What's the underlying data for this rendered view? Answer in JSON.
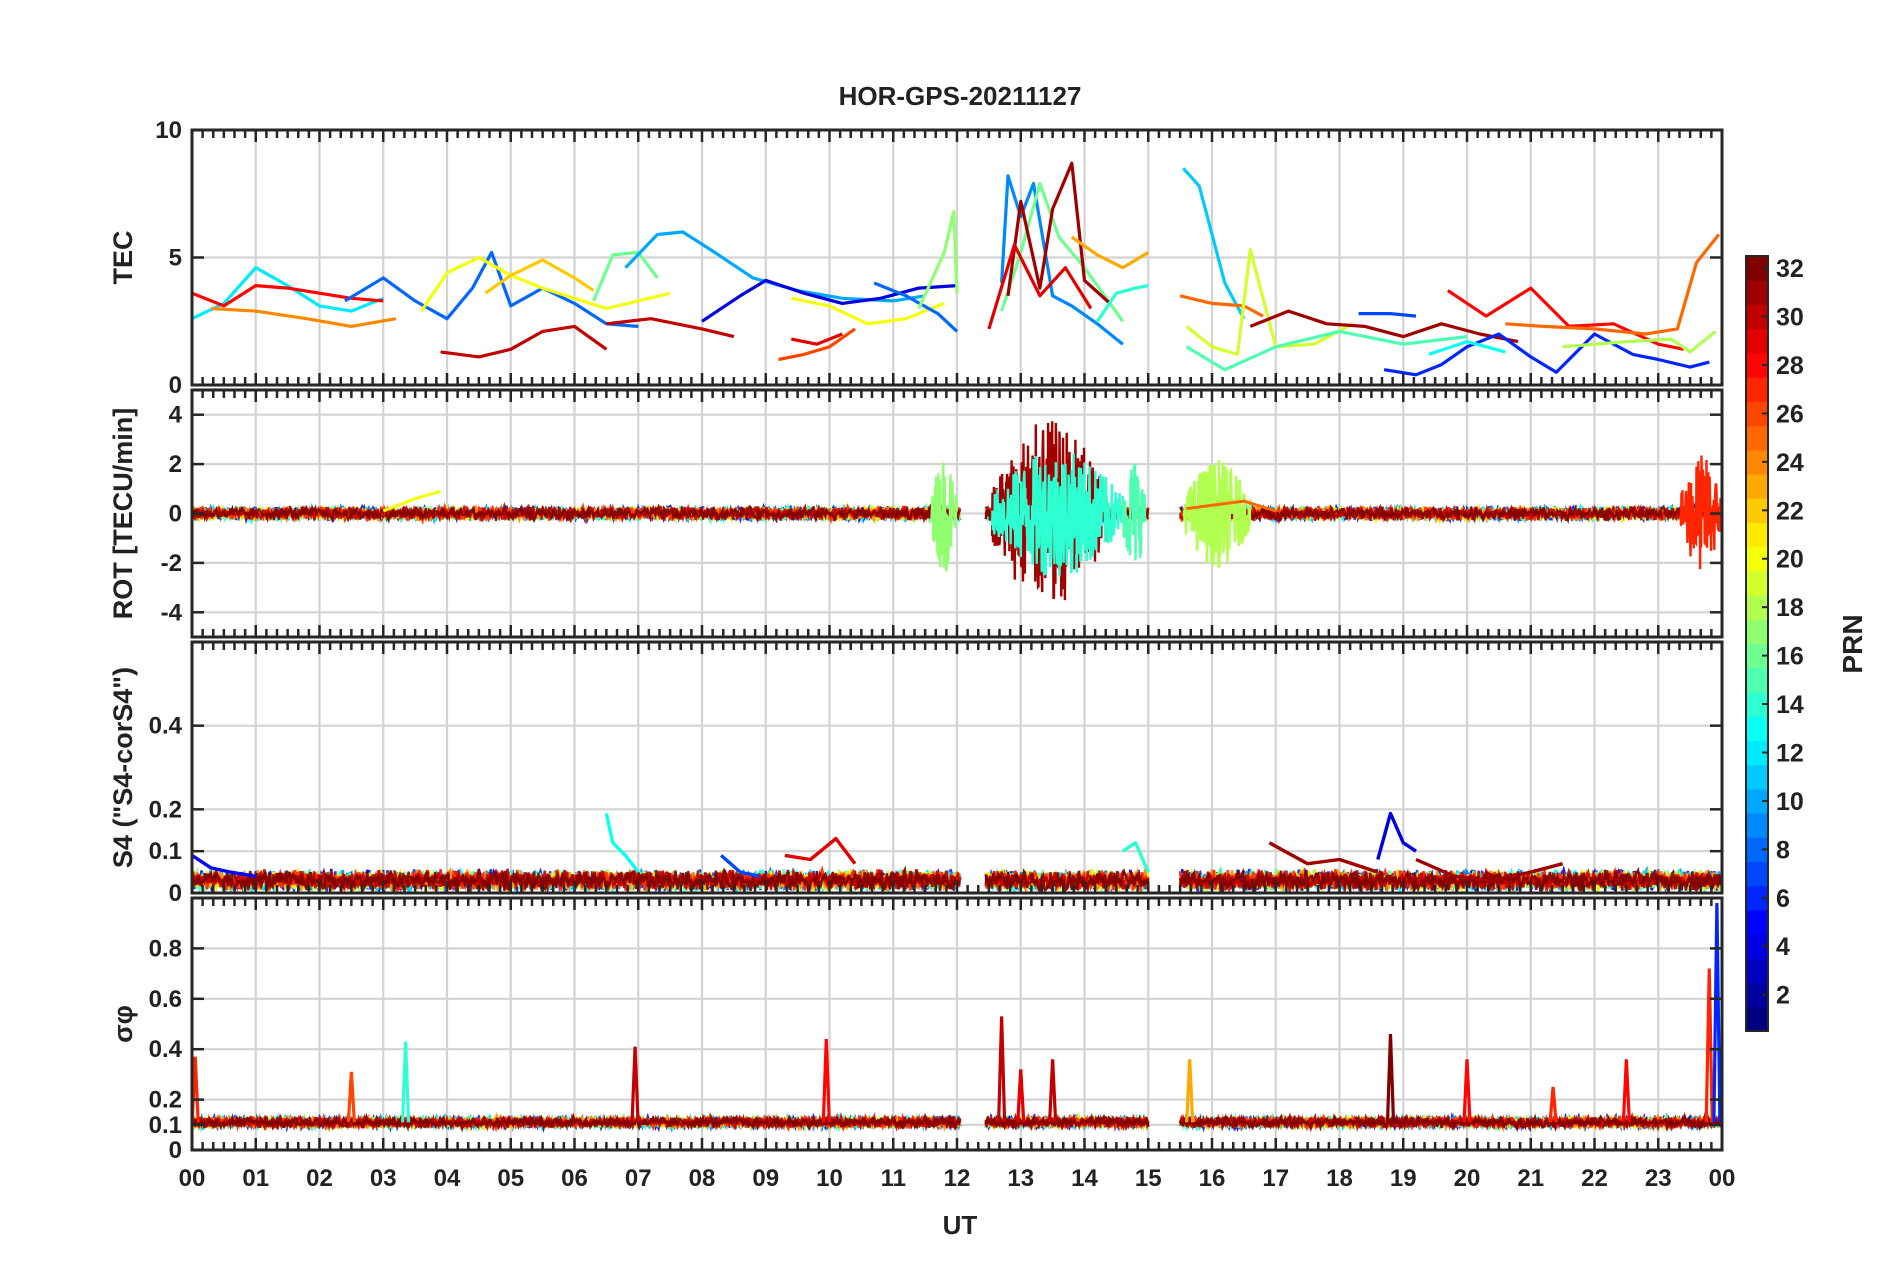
{
  "chart_data": {
    "type": "line",
    "title": "HOR-GPS-20211127",
    "xlabel": "UT",
    "x_ticks": [
      "00",
      "01",
      "02",
      "03",
      "04",
      "05",
      "06",
      "07",
      "08",
      "09",
      "10",
      "11",
      "12",
      "13",
      "14",
      "15",
      "16",
      "17",
      "18",
      "19",
      "20",
      "21",
      "22",
      "23",
      "00"
    ],
    "xlim": [
      0,
      24
    ],
    "grid": true,
    "data_gaps_ut": [
      [
        12.05,
        12.45
      ],
      [
        15.0,
        15.5
      ]
    ],
    "panels": [
      {
        "id": "tec",
        "ylabel": "TEC",
        "ylim": [
          0,
          10
        ],
        "y_tick_labels": [
          "0",
          "5",
          "10"
        ],
        "y_tick_values": [
          0,
          5,
          10
        ],
        "series": [
          {
            "prn": 12,
            "x": [
              0.0,
              0.5,
              1.0,
              1.5,
              2.0,
              2.5,
              3.0
            ],
            "y": [
              2.6,
              3.2,
              4.6,
              3.9,
              3.1,
              2.9,
              3.4
            ]
          },
          {
            "prn": 28,
            "x": [
              0.0,
              0.5,
              1.0,
              1.5,
              2.0,
              2.5,
              3.0
            ],
            "y": [
              3.6,
              3.1,
              3.9,
              3.8,
              3.6,
              3.4,
              3.3
            ]
          },
          {
            "prn": 24,
            "x": [
              0.3,
              1.0,
              1.8,
              2.5,
              3.2
            ],
            "y": [
              3.0,
              2.9,
              2.6,
              2.3,
              2.6
            ]
          },
          {
            "prn": 8,
            "x": [
              2.4,
              3.0,
              3.5,
              4.0,
              4.4,
              4.7,
              5.0,
              5.5,
              6.0,
              6.5,
              7.0
            ],
            "y": [
              3.3,
              4.2,
              3.3,
              2.6,
              3.8,
              5.2,
              3.1,
              3.8,
              3.2,
              2.4,
              2.3
            ]
          },
          {
            "prn": 20,
            "x": [
              3.6,
              4.0,
              4.5,
              5.0,
              5.5,
              6.0,
              6.5,
              7.0,
              7.5
            ],
            "y": [
              2.9,
              4.4,
              5.0,
              4.3,
              3.8,
              3.4,
              3.0,
              3.3,
              3.6
            ]
          },
          {
            "prn": 22,
            "x": [
              4.6,
              5.0,
              5.5,
              6.0,
              6.3
            ],
            "y": [
              3.6,
              4.3,
              4.9,
              4.2,
              3.7
            ]
          },
          {
            "prn": 30,
            "x": [
              3.9,
              4.5,
              5.0,
              5.5,
              6.0,
              6.5
            ],
            "y": [
              1.3,
              1.1,
              1.4,
              2.1,
              2.3,
              1.4
            ]
          },
          {
            "prn": 16,
            "x": [
              6.3,
              6.6,
              7.0,
              7.3
            ],
            "y": [
              3.3,
              5.1,
              5.2,
              4.2
            ]
          },
          {
            "prn": 10,
            "x": [
              6.8,
              7.3,
              7.7,
              8.2,
              8.8,
              9.5,
              10.2,
              11.0,
              11.5
            ],
            "y": [
              4.6,
              5.9,
              6.0,
              5.2,
              4.2,
              3.7,
              3.4,
              3.3,
              3.5
            ]
          },
          {
            "prn": 30,
            "x": [
              6.5,
              7.2,
              8.0,
              8.5
            ],
            "y": [
              2.4,
              2.6,
              2.2,
              1.9
            ]
          },
          {
            "prn": 4,
            "x": [
              8.0,
              8.6,
              9.0,
              9.6,
              10.2,
              10.8,
              11.4,
              12.0
            ],
            "y": [
              2.5,
              3.5,
              4.1,
              3.6,
              3.2,
              3.4,
              3.8,
              3.9
            ]
          },
          {
            "prn": 20,
            "x": [
              9.4,
              10.0,
              10.6,
              11.2,
              11.8
            ],
            "y": [
              3.4,
              3.1,
              2.4,
              2.6,
              3.2
            ]
          },
          {
            "prn": 26,
            "x": [
              9.2,
              9.6,
              10.0,
              10.4
            ],
            "y": [
              1.0,
              1.2,
              1.5,
              2.2
            ]
          },
          {
            "prn": 29,
            "x": [
              9.4,
              9.8,
              10.2
            ],
            "y": [
              1.8,
              1.6,
              2.0
            ]
          },
          {
            "prn": 8,
            "x": [
              10.7,
              11.2,
              11.7,
              12.0
            ],
            "y": [
              4.0,
              3.5,
              2.8,
              2.1
            ]
          },
          {
            "prn": 17,
            "x": [
              11.4,
              11.8,
              11.95,
              12.0
            ],
            "y": [
              3.0,
              5.2,
              6.8,
              3.6
            ]
          },
          {
            "prn": 9,
            "x": [
              12.7,
              12.8,
              13.0,
              13.2,
              13.5,
              13.8,
              14.2,
              14.6
            ],
            "y": [
              4.0,
              8.2,
              6.6,
              7.9,
              3.5,
              3.1,
              2.4,
              1.6
            ]
          },
          {
            "prn": 16,
            "x": [
              12.7,
              13.0,
              13.3,
              13.6,
              14.0,
              14.6
            ],
            "y": [
              2.9,
              5.2,
              7.9,
              5.8,
              4.6,
              2.5
            ]
          },
          {
            "prn": 31,
            "x": [
              12.8,
              13.0,
              13.3,
              13.5,
              13.8,
              14.0,
              14.4
            ],
            "y": [
              3.5,
              7.2,
              3.8,
              6.9,
              8.7,
              4.1,
              3.2
            ]
          },
          {
            "prn": 29,
            "x": [
              12.5,
              12.9,
              13.3,
              13.7,
              14.1
            ],
            "y": [
              2.2,
              5.5,
              3.5,
              4.6,
              3.0
            ]
          },
          {
            "prn": 23,
            "x": [
              13.8,
              14.2,
              14.6,
              15.0
            ],
            "y": [
              5.8,
              5.1,
              4.6,
              5.2
            ]
          },
          {
            "prn": 14,
            "x": [
              14.2,
              14.5,
              14.8,
              15.0
            ],
            "y": [
              2.5,
              3.6,
              3.8,
              3.9
            ]
          },
          {
            "prn": 11,
            "x": [
              15.55,
              15.8,
              16.2,
              16.5
            ],
            "y": [
              8.5,
              7.8,
              4.0,
              2.6
            ]
          },
          {
            "prn": 25,
            "x": [
              15.5,
              16.0,
              16.5,
              16.8
            ],
            "y": [
              3.5,
              3.2,
              3.1,
              2.7
            ]
          },
          {
            "prn": 19,
            "x": [
              15.6,
              16.0,
              16.4,
              16.6,
              17.0,
              17.6,
              18.2
            ],
            "y": [
              2.3,
              1.5,
              1.2,
              5.3,
              1.5,
              1.6,
              2.4
            ]
          },
          {
            "prn": 15,
            "x": [
              15.6,
              16.2,
              17.0,
              18.0,
              19.0,
              20.0
            ],
            "y": [
              1.5,
              0.6,
              1.5,
              2.1,
              1.6,
              1.9
            ]
          },
          {
            "prn": 31,
            "x": [
              16.6,
              17.2,
              17.8,
              18.4,
              19.0,
              19.6,
              20.2,
              20.8
            ],
            "y": [
              2.3,
              2.9,
              2.4,
              2.3,
              1.9,
              2.4,
              2.0,
              1.7
            ]
          },
          {
            "prn": 7,
            "x": [
              18.3,
              18.8,
              19.2
            ],
            "y": [
              2.8,
              2.8,
              2.7
            ]
          },
          {
            "prn": 6,
            "x": [
              18.7,
              19.2,
              19.6,
              20.0,
              20.5,
              21.0,
              21.4,
              22.0,
              22.6,
              23.0,
              23.5,
              23.8
            ],
            "y": [
              0.6,
              0.4,
              0.8,
              1.5,
              2.0,
              1.1,
              0.5,
              2.0,
              1.2,
              1.0,
              0.7,
              0.9
            ]
          },
          {
            "prn": 28,
            "x": [
              19.7,
              20.3,
              21.0,
              21.6,
              22.3,
              23.0,
              23.4
            ],
            "y": [
              3.7,
              2.7,
              3.8,
              2.3,
              2.4,
              1.6,
              1.4
            ]
          },
          {
            "prn": 25,
            "x": [
              20.6,
              21.2,
              22.0,
              22.8,
              23.3,
              23.6,
              23.95
            ],
            "y": [
              2.4,
              2.3,
              2.2,
              2.0,
              2.2,
              4.8,
              5.9
            ]
          },
          {
            "prn": 18,
            "x": [
              21.5,
              22.5,
              23.2,
              23.5,
              23.9
            ],
            "y": [
              1.5,
              1.7,
              1.8,
              1.3,
              2.1
            ]
          },
          {
            "prn": 13,
            "x": [
              19.4,
              20.0,
              20.6
            ],
            "y": [
              1.2,
              1.7,
              1.3
            ]
          }
        ]
      },
      {
        "id": "rot",
        "ylabel": "ROT [TECU/min]",
        "ylim": [
          -5,
          5
        ],
        "y_tick_labels": [
          "-4",
          "-2",
          "0",
          "2",
          "4"
        ],
        "y_tick_values": [
          -4,
          -2,
          0,
          2,
          4
        ],
        "quiet_level": 0,
        "quiet_band": 0.4,
        "bursts": [
          {
            "start": 12.55,
            "end": 14.35,
            "amplitude": 3.8,
            "prn": 31
          },
          {
            "start": 12.55,
            "end": 14.6,
            "amplitude": 2.6,
            "prn": 14
          },
          {
            "start": 11.6,
            "end": 12.0,
            "amplitude": 2.4,
            "prn": 17
          },
          {
            "start": 14.6,
            "end": 14.95,
            "amplitude": 2.4,
            "prn": 15
          },
          {
            "start": 15.55,
            "end": 16.6,
            "amplitude": 2.2,
            "prn": 18
          },
          {
            "start": 23.35,
            "end": 24.0,
            "amplitude": 2.4,
            "prn": 27
          }
        ],
        "series": [
          {
            "prn": 20,
            "x": [
              3.0,
              3.5,
              3.9
            ],
            "y": [
              0.1,
              0.6,
              0.9
            ]
          },
          {
            "prn": 25,
            "x": [
              15.6,
              16.5,
              17.0
            ],
            "y": [
              0.2,
              0.5,
              0.1
            ]
          }
        ]
      },
      {
        "id": "s4",
        "ylabel": "S4 (\"S4-corS4\")",
        "ylim": [
          0,
          0.6
        ],
        "y_tick_labels": [
          "0",
          "0.1",
          "0.2",
          "0.4"
        ],
        "y_tick_values": [
          0,
          0.1,
          0.2,
          0.4
        ],
        "baseline": 0.03,
        "series": [
          {
            "prn": 5,
            "x": [
              0.0,
              0.3,
              0.6,
              1.0
            ],
            "y": [
              0.09,
              0.06,
              0.05,
              0.04
            ]
          },
          {
            "prn": 13,
            "x": [
              6.5,
              6.6,
              6.8,
              7.0
            ],
            "y": [
              0.19,
              0.12,
              0.09,
              0.05
            ]
          },
          {
            "prn": 29,
            "x": [
              9.3,
              9.7,
              10.1,
              10.4
            ],
            "y": [
              0.09,
              0.08,
              0.13,
              0.07
            ]
          },
          {
            "prn": 7,
            "x": [
              8.3,
              8.6,
              8.9
            ],
            "y": [
              0.09,
              0.05,
              0.04
            ]
          },
          {
            "prn": 31,
            "x": [
              16.9,
              17.5,
              18.0,
              18.6
            ],
            "y": [
              0.12,
              0.07,
              0.08,
              0.05
            ]
          },
          {
            "prn": 4,
            "x": [
              18.6,
              18.8,
              19.0,
              19.2
            ],
            "y": [
              0.08,
              0.19,
              0.12,
              0.1
            ]
          },
          {
            "prn": 31,
            "x": [
              19.2,
              19.8,
              20.4,
              21.0,
              21.5
            ],
            "y": [
              0.08,
              0.04,
              0.03,
              0.05,
              0.07
            ]
          },
          {
            "prn": 14,
            "x": [
              14.6,
              14.8,
              15.0
            ],
            "y": [
              0.1,
              0.12,
              0.05
            ]
          }
        ]
      },
      {
        "id": "sigma",
        "ylabel": "σφ",
        "ylim": [
          0,
          1
        ],
        "y_tick_labels": [
          "0",
          "0.1",
          "0.2",
          "0.4",
          "0.6",
          "0.8"
        ],
        "y_tick_values": [
          0,
          0.1,
          0.2,
          0.4,
          0.6,
          0.8
        ],
        "baseline": 0.11,
        "spikes": [
          {
            "x": 0.05,
            "y": 0.37,
            "prn": 27
          },
          {
            "x": 2.5,
            "y": 0.31,
            "prn": 26
          },
          {
            "x": 3.35,
            "y": 0.43,
            "prn": 14
          },
          {
            "x": 6.95,
            "y": 0.41,
            "prn": 30
          },
          {
            "x": 9.95,
            "y": 0.44,
            "prn": 28
          },
          {
            "x": 12.7,
            "y": 0.53,
            "prn": 30
          },
          {
            "x": 13.0,
            "y": 0.32,
            "prn": 29
          },
          {
            "x": 13.5,
            "y": 0.36,
            "prn": 30
          },
          {
            "x": 15.65,
            "y": 0.36,
            "prn": 23
          },
          {
            "x": 18.8,
            "y": 0.46,
            "prn": 32
          },
          {
            "x": 20.0,
            "y": 0.36,
            "prn": 28
          },
          {
            "x": 21.35,
            "y": 0.25,
            "prn": 27
          },
          {
            "x": 22.5,
            "y": 0.36,
            "prn": 28
          },
          {
            "x": 23.8,
            "y": 0.72,
            "prn": 27
          },
          {
            "x": 23.92,
            "y": 0.98,
            "prn": 6
          }
        ]
      }
    ],
    "colorbar": {
      "label": "PRN",
      "range": [
        1,
        32
      ],
      "colormap": "jet",
      "tick_labels": [
        "2",
        "4",
        "6",
        "8",
        "10",
        "12",
        "14",
        "16",
        "18",
        "20",
        "22",
        "24",
        "26",
        "28",
        "30",
        "32"
      ],
      "tick_values": [
        2,
        4,
        6,
        8,
        10,
        12,
        14,
        16,
        18,
        20,
        22,
        24,
        26,
        28,
        30,
        32
      ]
    }
  }
}
